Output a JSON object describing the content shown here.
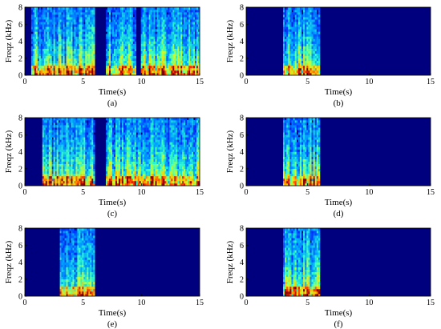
{
  "chart_data": [
    {
      "type": "heatmap",
      "panel": "(a)",
      "xlabel": "Time(s)",
      "ylabel": "Freqz (kHz)",
      "xlim": [
        0,
        15
      ],
      "ylim": [
        0,
        8
      ],
      "xticks": [
        0,
        5,
        10,
        15
      ],
      "yticks": [
        0,
        2,
        4,
        6,
        8
      ],
      "speech_regions_s": [
        [
          0.5,
          6.0
        ],
        [
          7.0,
          9.5
        ],
        [
          10.0,
          15.0
        ]
      ]
    },
    {
      "type": "heatmap",
      "panel": "(b)",
      "xlabel": "Time(s)",
      "ylabel": "Freqz (kHz)",
      "xlim": [
        0,
        15
      ],
      "ylim": [
        0,
        8
      ],
      "xticks": [
        0,
        5,
        10,
        15
      ],
      "yticks": [
        0,
        2,
        4,
        6,
        8
      ],
      "speech_regions_s": [
        [
          3.0,
          6.0
        ]
      ]
    },
    {
      "type": "heatmap",
      "panel": "(c)",
      "xlabel": "Time(s)",
      "ylabel": "Freqz (kHz)",
      "xlim": [
        0,
        15
      ],
      "ylim": [
        0,
        8
      ],
      "xticks": [
        0,
        5,
        10,
        15
      ],
      "yticks": [
        0,
        2,
        4,
        6,
        8
      ],
      "speech_regions_s": [
        [
          1.5,
          6.0
        ],
        [
          7.0,
          15.0
        ]
      ]
    },
    {
      "type": "heatmap",
      "panel": "(d)",
      "xlabel": "Time(s)",
      "ylabel": "Freqz (kHz)",
      "xlim": [
        0,
        15
      ],
      "ylim": [
        0,
        8
      ],
      "xticks": [
        0,
        5,
        10,
        15
      ],
      "yticks": [
        0,
        2,
        4,
        6,
        8
      ],
      "speech_regions_s": [
        [
          3.0,
          6.0
        ]
      ]
    },
    {
      "type": "heatmap",
      "panel": "(e)",
      "xlabel": "Time(s)",
      "ylabel": "Freqz (kHz)",
      "xlim": [
        0,
        15
      ],
      "ylim": [
        0,
        8
      ],
      "xticks": [
        0,
        5,
        10,
        15
      ],
      "yticks": [
        0,
        2,
        4,
        6,
        8
      ],
      "speech_regions_s": [
        [
          3.0,
          6.0
        ]
      ]
    },
    {
      "type": "heatmap",
      "panel": "(f)",
      "xlabel": "Time(s)",
      "ylabel": "Freqz (kHz)",
      "xlim": [
        0,
        15
      ],
      "ylim": [
        0,
        8
      ],
      "xticks": [
        0,
        5,
        10,
        15
      ],
      "yticks": [
        0,
        2,
        4,
        6,
        8
      ],
      "speech_regions_s": [
        [
          3.0,
          6.0
        ]
      ]
    }
  ],
  "colors": {
    "background": "#00007f",
    "colormap": [
      "#00007f",
      "#0030ff",
      "#00a8ff",
      "#30ffc8",
      "#c8ff30",
      "#ffc000",
      "#ff3000",
      "#800000"
    ]
  }
}
